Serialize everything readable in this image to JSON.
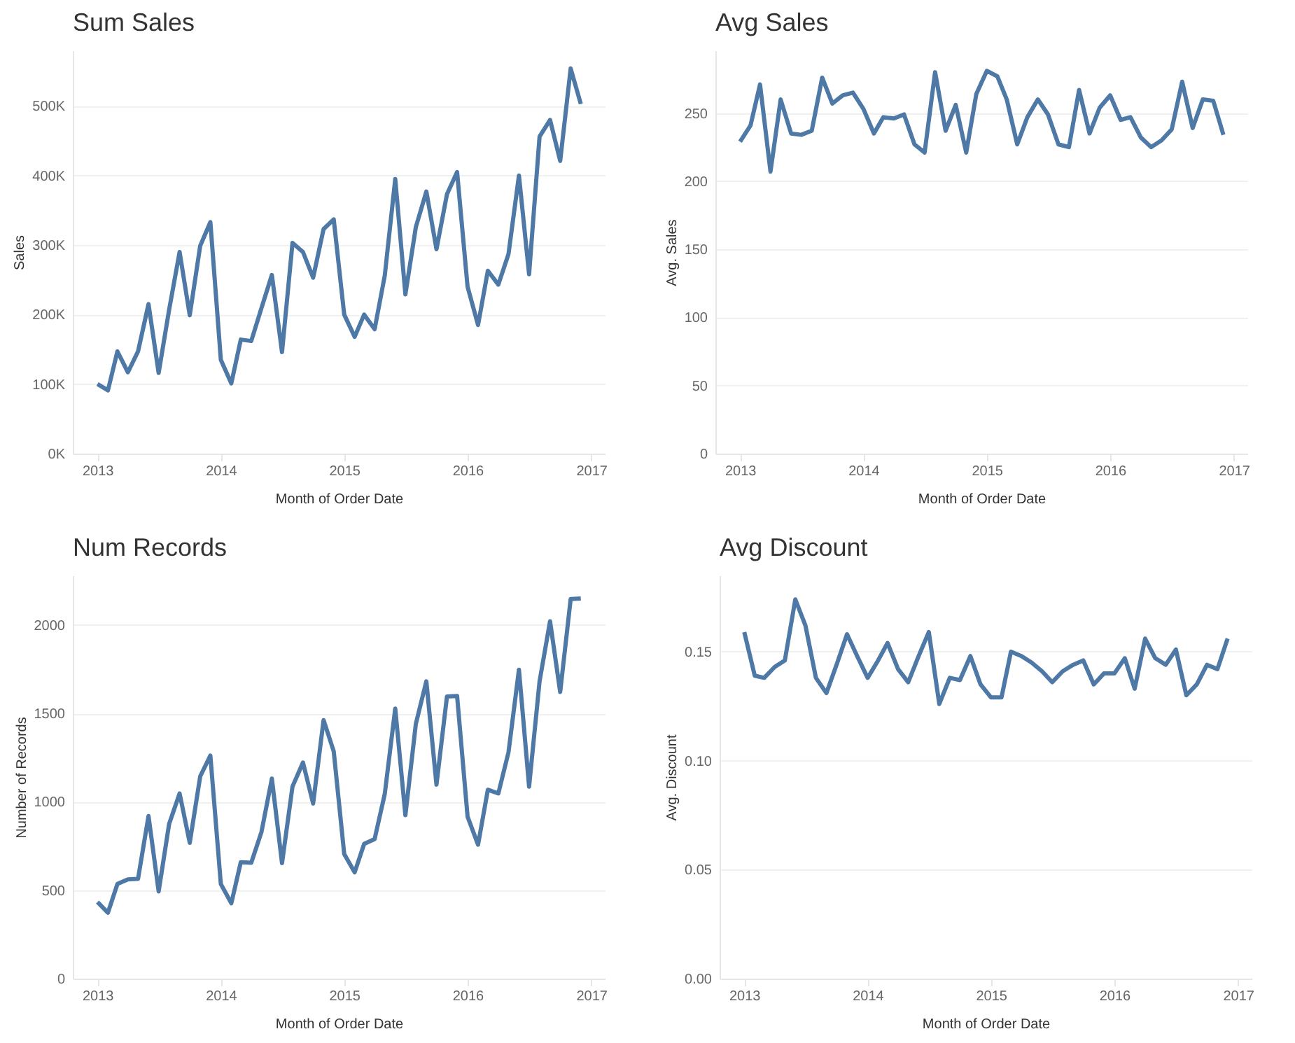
{
  "chart_data": [
    {
      "type": "line",
      "title": "Sum Sales",
      "xlabel": "Month of Order Date",
      "ylabel": "Sales",
      "grid": "y",
      "line_style": "solid",
      "x": [
        "2013-01",
        "2013-02",
        "2013-03",
        "2013-04",
        "2013-05",
        "2013-06",
        "2013-07",
        "2013-08",
        "2013-09",
        "2013-10",
        "2013-11",
        "2013-12",
        "2014-01",
        "2014-02",
        "2014-03",
        "2014-04",
        "2014-05",
        "2014-06",
        "2014-07",
        "2014-08",
        "2014-09",
        "2014-10",
        "2014-11",
        "2014-12",
        "2015-01",
        "2015-02",
        "2015-03",
        "2015-04",
        "2015-05",
        "2015-06",
        "2015-07",
        "2015-08",
        "2015-09",
        "2015-10",
        "2015-11",
        "2015-12",
        "2016-01",
        "2016-02",
        "2016-03",
        "2016-04",
        "2016-05",
        "2016-06",
        "2016-07",
        "2016-08",
        "2016-09",
        "2016-10",
        "2016-11",
        "2016-12"
      ],
      "xlim": [
        "2012-10-20",
        "2017-02-10"
      ],
      "xticks": [
        "2013",
        "2014",
        "2015",
        "2016",
        "2017"
      ],
      "ylim": [
        0,
        580000
      ],
      "yticks": [
        {
          "value": 0,
          "label": "0K"
        },
        {
          "value": 100000,
          "label": "100K"
        },
        {
          "value": 200000,
          "label": "200K"
        },
        {
          "value": 300000,
          "label": "300K"
        },
        {
          "value": 400000,
          "label": "400K"
        },
        {
          "value": 500000,
          "label": "500K"
        }
      ],
      "series": [
        {
          "color": "#4e79a7",
          "values": [
            100000,
            91000,
            147000,
            117000,
            147000,
            215000,
            116000,
            207000,
            290000,
            199000,
            299000,
            333000,
            135000,
            101000,
            164000,
            162000,
            209000,
            257000,
            146000,
            303000,
            290000,
            253000,
            323000,
            337000,
            200000,
            168000,
            200000,
            179000,
            256000,
            395000,
            229000,
            326000,
            377000,
            294000,
            373000,
            405000,
            240000,
            185000,
            263000,
            243000,
            287000,
            400000,
            258000,
            456000,
            480000,
            421000,
            554000,
            503000
          ]
        }
      ]
    },
    {
      "type": "line",
      "title": "Avg Sales",
      "xlabel": "Month of Order Date",
      "ylabel": "Avg. Sales",
      "grid": "y",
      "line_style": "solid",
      "x": [
        "2013-01",
        "2013-02",
        "2013-03",
        "2013-04",
        "2013-05",
        "2013-06",
        "2013-07",
        "2013-08",
        "2013-09",
        "2013-10",
        "2013-11",
        "2013-12",
        "2014-01",
        "2014-02",
        "2014-03",
        "2014-04",
        "2014-05",
        "2014-06",
        "2014-07",
        "2014-08",
        "2014-09",
        "2014-10",
        "2014-11",
        "2014-12",
        "2015-01",
        "2015-02",
        "2015-03",
        "2015-04",
        "2015-05",
        "2015-06",
        "2015-07",
        "2015-08",
        "2015-09",
        "2015-10",
        "2015-11",
        "2015-12",
        "2016-01",
        "2016-02",
        "2016-03",
        "2016-04",
        "2016-05",
        "2016-06",
        "2016-07",
        "2016-08",
        "2016-09",
        "2016-10",
        "2016-11",
        "2016-12"
      ],
      "xlim": [
        "2012-10-20",
        "2017-02-10"
      ],
      "xticks": [
        "2013",
        "2014",
        "2015",
        "2016",
        "2017"
      ],
      "ylim": [
        0,
        296
      ],
      "yticks": [
        0,
        50,
        100,
        150,
        200,
        250
      ],
      "series": [
        {
          "color": "#4e79a7",
          "values": [
            229,
            241,
            271,
            207,
            260,
            235,
            234,
            237,
            276,
            257,
            263,
            265,
            253,
            235,
            247,
            246,
            249,
            227,
            221,
            280,
            237,
            256,
            221,
            264,
            281,
            277,
            260,
            227,
            247,
            260,
            249,
            227,
            225,
            267,
            235,
            254,
            263,
            245,
            247,
            232,
            225,
            230,
            238,
            273,
            239,
            260,
            259,
            234
          ]
        }
      ]
    },
    {
      "type": "line",
      "title": "Num Records",
      "xlabel": "Month of Order Date",
      "ylabel": "Number of Records",
      "grid": "y",
      "line_style": "solid",
      "x": [
        "2013-01",
        "2013-02",
        "2013-03",
        "2013-04",
        "2013-05",
        "2013-06",
        "2013-07",
        "2013-08",
        "2013-09",
        "2013-10",
        "2013-11",
        "2013-12",
        "2014-01",
        "2014-02",
        "2014-03",
        "2014-04",
        "2014-05",
        "2014-06",
        "2014-07",
        "2014-08",
        "2014-09",
        "2014-10",
        "2014-11",
        "2014-12",
        "2015-01",
        "2015-02",
        "2015-03",
        "2015-04",
        "2015-05",
        "2015-06",
        "2015-07",
        "2015-08",
        "2015-09",
        "2015-10",
        "2015-11",
        "2015-12",
        "2016-01",
        "2016-02",
        "2016-03",
        "2016-04",
        "2016-05",
        "2016-06",
        "2016-07",
        "2016-08",
        "2016-09",
        "2016-10",
        "2016-11",
        "2016-12"
      ],
      "xlim": [
        "2012-10-20",
        "2017-02-10"
      ],
      "xticks": [
        "2013",
        "2014",
        "2015",
        "2016",
        "2017"
      ],
      "ylim": [
        0,
        2280
      ],
      "yticks": [
        0,
        500,
        1000,
        1500,
        2000
      ],
      "series": [
        {
          "color": "#4e79a7",
          "values": [
            433,
            373,
            535,
            561,
            564,
            919,
            493,
            875,
            1047,
            768,
            1144,
            1261,
            535,
            426,
            658,
            655,
            828,
            1131,
            653,
            1086,
            1222,
            990,
            1462,
            1285,
            705,
            601,
            762,
            789,
            1044,
            1527,
            924,
            1441,
            1681,
            1097,
            1595,
            1598,
            916,
            757,
            1068,
            1047,
            1279,
            1747,
            1086,
            1681,
            2021,
            1621,
            2146,
            2149
          ]
        }
      ]
    },
    {
      "type": "line",
      "title": "Avg Discount",
      "xlabel": "Month of Order Date",
      "ylabel": "Avg. Discount",
      "grid": "y",
      "line_style": "solid",
      "x": [
        "2013-01",
        "2013-02",
        "2013-03",
        "2013-04",
        "2013-05",
        "2013-06",
        "2013-07",
        "2013-08",
        "2013-09",
        "2013-10",
        "2013-11",
        "2013-12",
        "2014-01",
        "2014-02",
        "2014-03",
        "2014-04",
        "2014-05",
        "2014-06",
        "2014-07",
        "2014-08",
        "2014-09",
        "2014-10",
        "2014-11",
        "2014-12",
        "2015-01",
        "2015-02",
        "2015-03",
        "2015-04",
        "2015-05",
        "2015-06",
        "2015-07",
        "2015-08",
        "2015-09",
        "2015-10",
        "2015-11",
        "2015-12",
        "2016-01",
        "2016-02",
        "2016-03",
        "2016-04",
        "2016-05",
        "2016-06",
        "2016-07",
        "2016-08",
        "2016-09",
        "2016-10",
        "2016-11",
        "2016-12"
      ],
      "xlim": [
        "2012-10-20",
        "2017-02-10"
      ],
      "xticks": [
        "2013",
        "2014",
        "2015",
        "2016",
        "2017"
      ],
      "ylim": [
        0,
        0.185
      ],
      "yticks": [
        {
          "value": 0,
          "label": "0.00"
        },
        {
          "value": 0.05,
          "label": "0.05"
        },
        {
          "value": 0.1,
          "label": "0.10"
        },
        {
          "value": 0.15,
          "label": "0.15"
        }
      ],
      "series": [
        {
          "color": "#4e79a7",
          "values": [
            0.159,
            0.139,
            0.138,
            0.143,
            0.146,
            0.174,
            0.162,
            0.138,
            0.131,
            0.144,
            0.158,
            0.148,
            0.138,
            0.146,
            0.154,
            0.142,
            0.136,
            0.148,
            0.159,
            0.126,
            0.138,
            0.137,
            0.148,
            0.135,
            0.129,
            0.129,
            0.15,
            0.148,
            0.145,
            0.141,
            0.136,
            0.141,
            0.144,
            0.146,
            0.135,
            0.14,
            0.14,
            0.147,
            0.133,
            0.156,
            0.147,
            0.144,
            0.151,
            0.13,
            0.135,
            0.144,
            0.142,
            0.156
          ]
        }
      ]
    }
  ]
}
